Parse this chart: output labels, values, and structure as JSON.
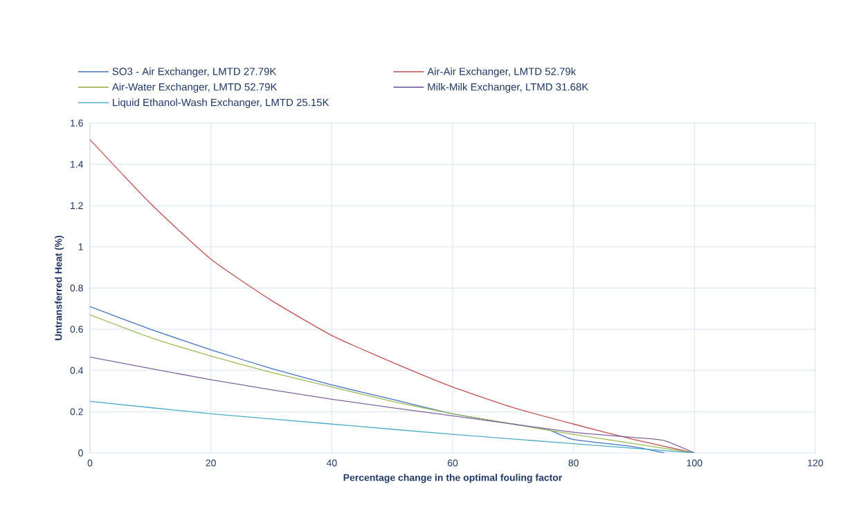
{
  "chart_data": {
    "type": "line",
    "xlabel": "Percentage change in the optimal fouling factor",
    "ylabel": "Untransferred Heat (%)",
    "xlim": [
      0,
      120
    ],
    "xticks": [
      0,
      20,
      40,
      60,
      80,
      100,
      120
    ],
    "ylim": [
      0,
      1.6
    ],
    "yticks": [
      0,
      0.2,
      0.4,
      0.6,
      0.8,
      1,
      1.2,
      1.4,
      1.6
    ],
    "grid": true,
    "legend": "top",
    "marker": "none",
    "line_style": "solid",
    "series": [
      {
        "name": "SO3 - Air Exchanger, LMTD 27.79K",
        "color": "#4472c4",
        "x": [
          0,
          10,
          20,
          30,
          40,
          50,
          60,
          70,
          76,
          80,
          90,
          95
        ],
        "values": [
          0.71,
          0.6,
          0.5,
          0.41,
          0.33,
          0.26,
          0.19,
          0.14,
          0.11,
          0.065,
          0.03,
          0
        ]
      },
      {
        "name": "Air-Air Exchanger, LMTD 52.79k",
        "color": "#c0504d",
        "x": [
          0,
          10,
          20,
          30,
          40,
          50,
          60,
          70,
          80,
          90,
          100
        ],
        "values": [
          1.52,
          1.21,
          0.94,
          0.74,
          0.57,
          0.44,
          0.32,
          0.22,
          0.14,
          0.065,
          0
        ]
      },
      {
        "name": "Air-Water Exchanger, LMTD 52.79K",
        "color": "#9bbb59",
        "x": [
          0,
          10,
          20,
          30,
          40,
          50,
          60,
          70,
          80,
          90,
          100
        ],
        "values": [
          0.67,
          0.56,
          0.47,
          0.39,
          0.32,
          0.25,
          0.19,
          0.14,
          0.09,
          0.045,
          0
        ]
      },
      {
        "name": "Milk-Milk Exchanger, LTMD 31.68K",
        "color": "#8064a2",
        "x": [
          0,
          20,
          40,
          60,
          80,
          90,
          95,
          100
        ],
        "values": [
          0.465,
          0.355,
          0.26,
          0.18,
          0.1,
          0.075,
          0.06,
          0
        ]
      },
      {
        "name": "Liquid Ethanol-Wash Exchanger, LMTD 25.15K",
        "color": "#4bacc6",
        "x": [
          0,
          20,
          40,
          60,
          80,
          100
        ],
        "values": [
          0.25,
          0.19,
          0.14,
          0.09,
          0.045,
          0
        ]
      }
    ]
  }
}
